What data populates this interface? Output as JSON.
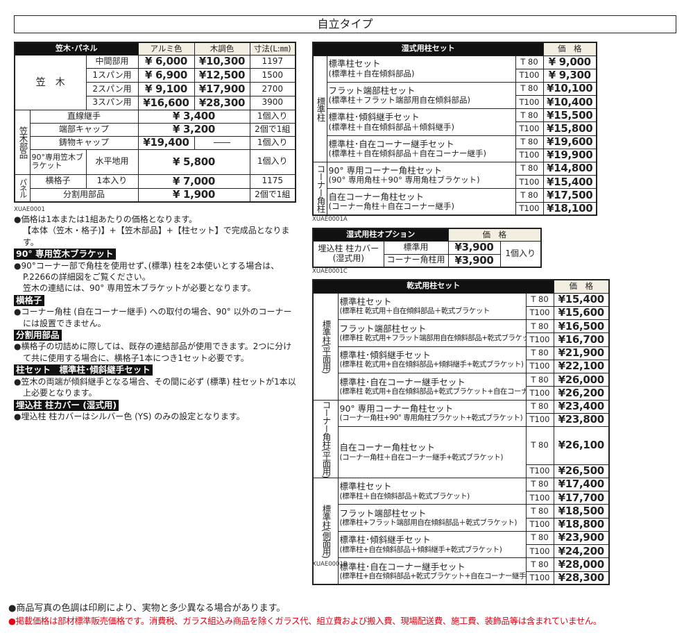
{
  "title": "自立タイプ",
  "colors": {
    "header_black": "#111111",
    "header_beige": "#f3eee2",
    "notice_red": "#e60012"
  },
  "kasagi_table": {
    "header": {
      "title": "笠木･パネル",
      "alumi": "アルミ色",
      "wood": "木調色",
      "size": "寸法(L:㎜)"
    },
    "kasagi_label": "笠　木",
    "kasagi_rows": [
      {
        "label": "中間部用",
        "alumi": "¥  6,000",
        "wood": "¥10,300",
        "size": "1197"
      },
      {
        "label": "1スパン用",
        "alumi": "¥  6,900",
        "wood": "¥12,500",
        "size": "1500"
      },
      {
        "label": "2スパン用",
        "alumi": "¥  9,100",
        "wood": "¥17,900",
        "size": "2700"
      },
      {
        "label": "3スパン用",
        "alumi": "¥16,600",
        "wood": "¥28,300",
        "size": "3900"
      }
    ],
    "parts_label": "笠木部品",
    "parts_rows": [
      {
        "label": "直線継手",
        "price": "¥  3,400",
        "unit": "1個入り"
      },
      {
        "label": "端部キャップ",
        "price": "¥  3,200",
        "unit": "2個で1組"
      },
      {
        "label": "鋳物キャップ",
        "alumi": "¥19,400",
        "wood": "――",
        "unit": "1個入り"
      },
      {
        "label": "90°専用笠木ブラケット",
        "sub": "水平地用",
        "price": "¥  5,800",
        "unit": "1個入り"
      }
    ],
    "panel_label": "パネル",
    "panel_rows": [
      {
        "label": "横格子",
        "sub": "1本入り",
        "price": "¥  7,000",
        "unit": "1175"
      },
      {
        "label": "分割用部品",
        "price": "¥  1,900",
        "unit": "2個で1組"
      }
    ],
    "code": "XUAE0001"
  },
  "notes": [
    {
      "type": "p",
      "text": "●価格は1本または1組あたりの価格となります。"
    },
    {
      "type": "ind",
      "text": "【本体（笠木・格子)】+【笠木部品】+【柱セット】で完成品となります。"
    },
    {
      "type": "hd",
      "text": "90° 専用笠木ブラケット"
    },
    {
      "type": "p",
      "text": "●90°コーナー部で角柱を使用せず､(標準) 柱を2本使いとする場合は、P.2266の詳細図をご覧ください。"
    },
    {
      "type": "ind",
      "text": "笠木の連結には、90° 専用笠木ブラケットが必要となります。"
    },
    {
      "type": "hd",
      "text": "横格子"
    },
    {
      "type": "p",
      "text": "●コーナー角柱 (自在コーナー継手) への取付の場合、90° 以外のコーナーには設置できません。"
    },
    {
      "type": "hd",
      "text": "分割用部品"
    },
    {
      "type": "p",
      "text": "●横格子の切詰めに際しては、既存の連結部品が使用できます。2つに分けて共に使用する場合に、横格子1本につき1セット必要です。"
    },
    {
      "type": "hd",
      "text": "柱セット　標準柱･傾斜継手セット"
    },
    {
      "type": "p",
      "text": "●笠木の両端が傾斜継手となる場合、その間に必ず (標準) 柱セットが1本以上必要となります。"
    },
    {
      "type": "hd",
      "text": "埋込柱 柱カバー (湿式用)"
    },
    {
      "type": "p",
      "text": "●埋込柱 柱カバーはシルバー色 (YS) のみの設定となります。"
    }
  ],
  "wet_table": {
    "header": {
      "title": "湿式用柱セット",
      "price": "価　格"
    },
    "groups": [
      {
        "label": "標準柱",
        "items": [
          {
            "name": "標準柱セット",
            "desc": "(標準柱＋自在傾斜部品)",
            "t80": "¥  9,000",
            "t100": "¥  9,300"
          },
          {
            "name": "フラット端部柱セット",
            "desc": "(標準柱＋フラット端部用自在傾斜部品)",
            "t80": "¥10,100",
            "t100": "¥10,400"
          },
          {
            "name": "標準柱･傾斜継手セット",
            "desc": "(標準柱＋自在傾斜部品＋傾斜継手)",
            "t80": "¥15,500",
            "t100": "¥15,800"
          },
          {
            "name": "標準柱･自在コーナー継手セット",
            "desc": "(標準柱＋自在傾斜部品＋自在コーナー継手)",
            "t80": "¥19,600",
            "t100": "¥19,900"
          }
        ]
      },
      {
        "label": "コーナー角柱",
        "items": [
          {
            "name": "90° 専用コーナー角柱セット",
            "desc": "(90° 専用角柱＋90° 専用角柱ブラケット)",
            "t80": "¥14,800",
            "t100": "¥15,400"
          },
          {
            "name": "自在コーナー角柱セット",
            "desc": "(コーナー角柱＋自在コーナー継手)",
            "t80": "¥17,500",
            "t100": "¥18,100"
          }
        ]
      }
    ],
    "t80_label": "T  80",
    "t100_label": "T100",
    "code": "XUAE0001A"
  },
  "option_table": {
    "header": {
      "title": "湿式用柱オプション",
      "price": "価　格"
    },
    "label": "埋込柱 柱カバー\n(湿式用)",
    "rows": [
      {
        "label": "標準用",
        "price": "¥3,900"
      },
      {
        "label": "コーナー角柱用",
        "price": "¥3,900"
      }
    ],
    "unit": "1個入り",
    "code": "XUAE0001C"
  },
  "dry_table": {
    "header": {
      "title": "乾式用柱セット",
      "price": "価　格"
    },
    "groups": [
      {
        "label": "標準柱(平面用)",
        "items": [
          {
            "name": "標準柱セット",
            "desc": "(標準柱 乾式用＋自在傾斜部品＋乾式ブラケット",
            "t80": "¥15,400",
            "t100": "¥15,600"
          },
          {
            "name": "フラット端部柱セット",
            "desc": "(標準柱 乾式用+フラット端部用自在傾斜部品+乾式ブラケット)",
            "t80": "¥16,500",
            "t100": "¥16,700"
          },
          {
            "name": "標準柱･傾斜継手セット",
            "desc": "(標準柱 乾式用+自在傾斜部品+傾斜継手+乾式ブラケット)",
            "t80": "¥21,900",
            "t100": "¥22,100"
          },
          {
            "name": "標準柱･自在コーナー継手セット",
            "desc": "(標準柱 乾式用+自在傾斜部品+乾式ブラケット+自在コーナー継手)",
            "t80": "¥26,000",
            "t100": "¥26,200"
          }
        ]
      },
      {
        "label": "コーナー角柱",
        "label2": "(平面用)",
        "items": [
          {
            "name": "90° 専用コーナー角柱セット",
            "desc": "(コーナー角柱+90° 専用角柱ブラケット+乾式ブラケット)",
            "t80": "¥23,400",
            "t100": "¥23,800"
          },
          {
            "name": "自在コーナー角柱セット",
            "desc": "(コーナー角柱＋自在コーナー継手+乾式ブラケット)",
            "t80": "¥26,100",
            "t100": "¥26,500"
          }
        ]
      },
      {
        "label": "標準柱(側面用)",
        "items": [
          {
            "name": "標準柱セット",
            "desc": "(標準柱＋自在傾斜部品＋乾式ブラケット)",
            "t80": "¥17,400",
            "t100": "¥17,700"
          },
          {
            "name": "フラット端部柱セット",
            "desc": "(標準柱+フラット端部用自在傾斜部品＋乾式ブラケット)",
            "t80": "¥18,500",
            "t100": "¥18,800"
          },
          {
            "name": "標準柱･傾斜継手セット",
            "desc": "(標準柱+自在傾斜部品＋傾斜継手+乾式ブラケット)",
            "t80": "¥23,900",
            "t100": "¥24,200"
          },
          {
            "name": "標準柱･自在コーナー継手セット",
            "desc": "(標準柱+自在傾斜部品+乾式ブラケット+自在コーナー継手)",
            "t80": "¥28,000",
            "t100": "¥28,300"
          }
        ]
      }
    ],
    "t80_label": "T  80",
    "t100_label": "T100",
    "code": "XUAE0001B"
  },
  "footer": {
    "line1": "●商品写真の色調は印刷により、実物と多少異なる場合があります。",
    "line2": "●掲載価格は部材標準販売価格です。消費税、ガラス組込み商品を除くガラス代、組立費および搬入費、現場配送費、施工費、装飾品等は含まれていません。"
  }
}
